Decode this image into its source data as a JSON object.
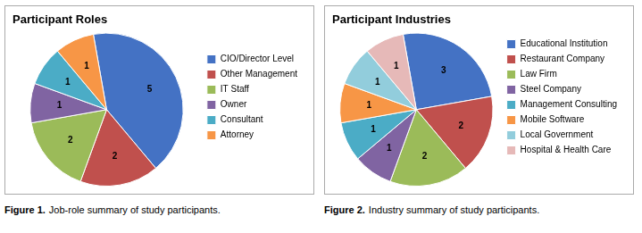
{
  "chart_data": [
    {
      "type": "pie",
      "title": "Participant Roles",
      "categories": [
        "CIO/Director Level",
        "Other Management",
        "IT Staff",
        "Owner",
        "Consultant",
        "Attorney"
      ],
      "values": [
        5,
        2,
        2,
        1,
        1,
        1
      ],
      "colors": [
        "#4472C4",
        "#C0504D",
        "#9BBB59",
        "#8064A2",
        "#4BACC6",
        "#F79646"
      ],
      "data_labels": true,
      "legend": "right",
      "annotations": [
        "Figure 1.",
        "Job-role summary of study participants."
      ]
    },
    {
      "type": "pie",
      "title": "Participant Industries",
      "categories": [
        "Educational Institution",
        "Restaurant Company",
        "Law Firm",
        "Steel Company",
        "Management Consulting",
        "Mobile Software",
        "Local Government",
        "Hospital & Health Care"
      ],
      "values": [
        3,
        2,
        2,
        1,
        1,
        1,
        1,
        1
      ],
      "colors": [
        "#4472C4",
        "#C0504D",
        "#9BBB59",
        "#8064A2",
        "#4BACC6",
        "#F79646",
        "#92CDDC",
        "#E6B9B8"
      ],
      "data_labels": true,
      "legend": "right",
      "annotations": [
        "Figure 2.",
        "Industry summary of study participants."
      ]
    }
  ]
}
